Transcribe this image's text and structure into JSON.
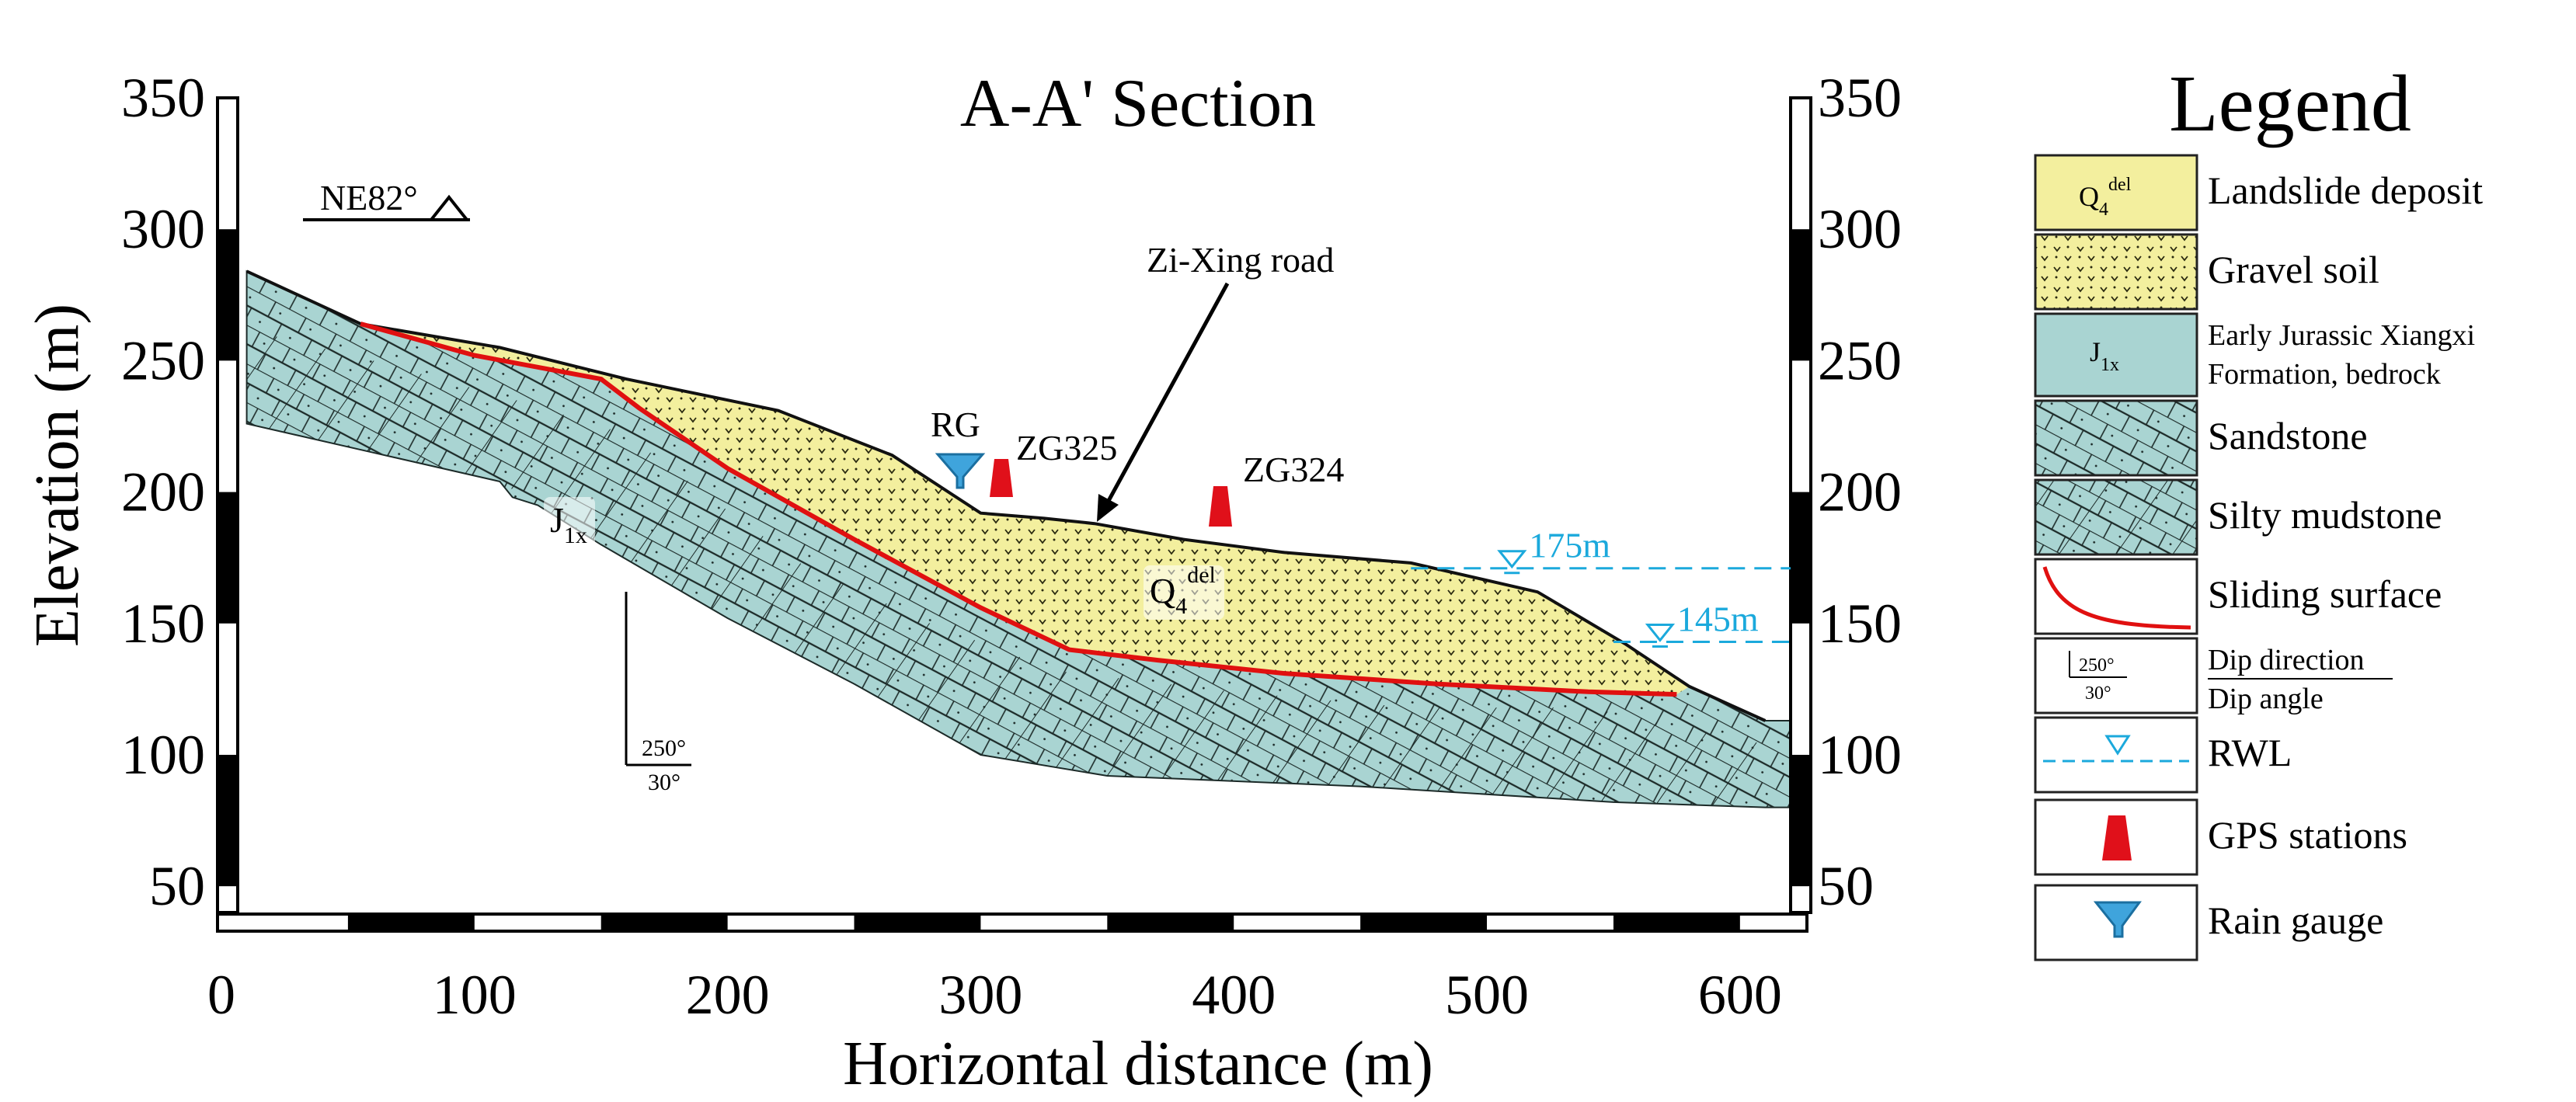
{
  "chart_data": {
    "type": "diagram",
    "title": "A-A' Section",
    "xlabel": "Horizontal distance (m)",
    "ylabel": "Elevation (m)",
    "xlim": [
      0,
      620
    ],
    "ylim": [
      40,
      350
    ],
    "x_ticks": [
      "0",
      "100",
      "200",
      "300",
      "400",
      "500",
      "600"
    ],
    "y_ticks": [
      "50",
      "100",
      "150",
      "200",
      "250",
      "300",
      "350"
    ],
    "orientation": "NE82°",
    "annotations": {
      "road": "Zi-Xing road",
      "rain_gauge": "RG",
      "gps_1": "ZG325",
      "gps_2": "ZG324",
      "bedrock_label": "J",
      "bedrock_sub": "1x",
      "deposit_label": "Q",
      "deposit_sub": "4",
      "deposit_sup": "del",
      "dip_direction": "250°",
      "dip_angle": "30°"
    },
    "water_levels": [
      {
        "label": "175m",
        "elevation": 171,
        "x_start": 470
      },
      {
        "label": "145m",
        "elevation": 143,
        "x_start": 550
      }
    ],
    "ground_surface": [
      [
        10,
        284
      ],
      [
        55,
        264
      ],
      [
        110,
        255
      ],
      [
        160,
        243
      ],
      [
        220,
        231
      ],
      [
        265,
        214
      ],
      [
        300,
        192
      ],
      [
        325,
        190
      ],
      [
        345,
        188
      ],
      [
        380,
        182
      ],
      [
        420,
        177
      ],
      [
        470,
        173
      ],
      [
        520,
        162
      ],
      [
        555,
        142
      ],
      [
        580,
        126
      ],
      [
        610,
        113
      ]
    ],
    "sliding_surface": [
      [
        55,
        264
      ],
      [
        100,
        252
      ],
      [
        150,
        243
      ],
      [
        165,
        232
      ],
      [
        200,
        209
      ],
      [
        250,
        182
      ],
      [
        300,
        156
      ],
      [
        335,
        140
      ],
      [
        370,
        136
      ],
      [
        420,
        131
      ],
      [
        480,
        127
      ],
      [
        540,
        124
      ],
      [
        575,
        123
      ]
    ],
    "section_bottom": [
      [
        10,
        226
      ],
      [
        60,
        215
      ],
      [
        110,
        204
      ],
      [
        115,
        198
      ],
      [
        125,
        195
      ],
      [
        150,
        180
      ],
      [
        200,
        152
      ],
      [
        250,
        127
      ],
      [
        300,
        100
      ],
      [
        350,
        92
      ],
      [
        450,
        88
      ],
      [
        550,
        82
      ],
      [
        610,
        80
      ]
    ]
  },
  "legend": {
    "title": "Legend",
    "items": [
      {
        "label": "Landslide deposit",
        "symbol": "Q",
        "sub": "4",
        "sup": "del"
      },
      {
        "label": "Gravel soil"
      },
      {
        "label_line1": "Early Jurassic Xiangxi",
        "label_line2": "Formation, bedrock",
        "symbol": "J",
        "sub": "1x"
      },
      {
        "label": "Sandstone"
      },
      {
        "label": "Silty mudstone"
      },
      {
        "label": "Sliding surface"
      },
      {
        "label_line1": "Dip direction",
        "label_line2": "Dip angle",
        "symbol_top": "250°",
        "symbol_bottom": "30°"
      },
      {
        "label": "RWL"
      },
      {
        "label": "GPS stations"
      },
      {
        "label": "Rain gauge"
      }
    ]
  },
  "colors": {
    "deposit": "#f3ef9e",
    "bedrock": "#a9d4d2",
    "sliding": "#e01010",
    "water": "#1ba9dc",
    "gps": "#e0101a"
  }
}
